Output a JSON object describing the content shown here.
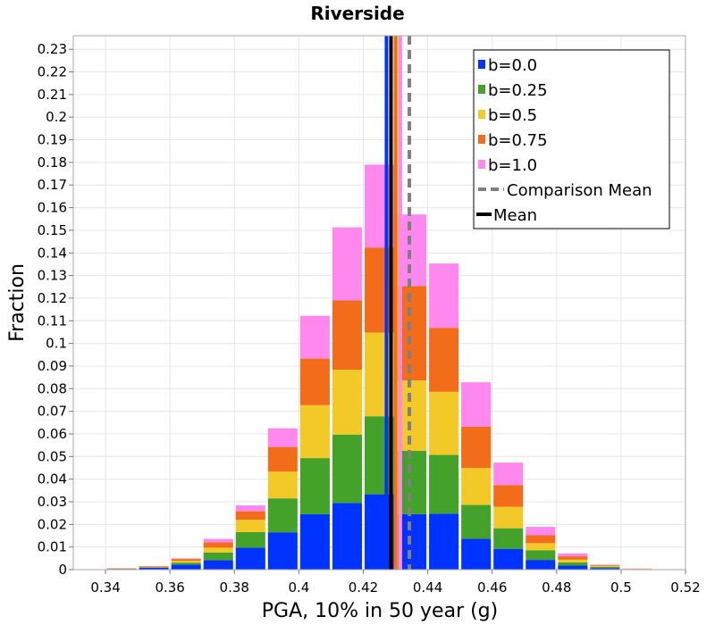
{
  "chart_data": {
    "type": "bar",
    "stacked": true,
    "title": "Riverside",
    "xlabel": "PGA, 10% in 50 year (g)",
    "ylabel": "Fraction",
    "xlim": [
      0.33,
      0.52
    ],
    "ylim": [
      0,
      0.236
    ],
    "xticks": [
      "0.34",
      "0.36",
      "0.38",
      "0.4",
      "0.42",
      "0.44",
      "0.46",
      "0.48",
      "0.5",
      "0.52"
    ],
    "xtick_values": [
      0.34,
      0.36,
      0.38,
      0.4,
      0.42,
      0.44,
      0.46,
      0.48,
      0.5,
      0.52
    ],
    "yticks": [
      "0",
      "0.01",
      "0.02",
      "0.03",
      "0.04",
      "0.05",
      "0.06",
      "0.07",
      "0.08",
      "0.09",
      "0.1",
      "0.11",
      "0.12",
      "0.13",
      "0.14",
      "0.15",
      "0.16",
      "0.17",
      "0.18",
      "0.19",
      "0.2",
      "0.21",
      "0.22",
      "0.23"
    ],
    "ytick_values": [
      0,
      0.01,
      0.02,
      0.03,
      0.04,
      0.05,
      0.06,
      0.07,
      0.08,
      0.09,
      0.1,
      0.11,
      0.12,
      0.13,
      0.14,
      0.15,
      0.16,
      0.17,
      0.18,
      0.19,
      0.2,
      0.21,
      0.22,
      0.23
    ],
    "grid": true,
    "legend_position": "top-right",
    "bin_width": 0.01,
    "bin_centers": [
      0.345,
      0.355,
      0.365,
      0.375,
      0.385,
      0.395,
      0.405,
      0.415,
      0.425,
      0.435,
      0.445,
      0.455,
      0.465,
      0.475,
      0.485,
      0.495,
      0.505
    ],
    "series": [
      {
        "name": "b=0.0",
        "color": "#0033ff",
        "values": [
          0.0003,
          0.0008,
          0.0022,
          0.0042,
          0.0097,
          0.0165,
          0.0245,
          0.0295,
          0.0333,
          0.0245,
          0.0247,
          0.0136,
          0.0092,
          0.0043,
          0.0018,
          0.0007,
          0.0001
        ]
      },
      {
        "name": "b=0.25",
        "color": "#44a12a",
        "values": [
          0.0001,
          0.0002,
          0.0009,
          0.0034,
          0.0069,
          0.015,
          0.0248,
          0.0302,
          0.0345,
          0.028,
          0.026,
          0.015,
          0.0091,
          0.0043,
          0.0014,
          0.0005,
          0.0001
        ]
      },
      {
        "name": "b=0.5",
        "color": "#f2c926",
        "values": [
          0.0001,
          0.0002,
          0.0008,
          0.0021,
          0.0054,
          0.0118,
          0.0234,
          0.0287,
          0.037,
          0.0311,
          0.0279,
          0.0163,
          0.0095,
          0.0031,
          0.0012,
          0.0005,
          0.0001
        ]
      },
      {
        "name": "b=0.75",
        "color": "#f26c1a",
        "values": [
          0.0001,
          0.0002,
          0.0008,
          0.0024,
          0.0038,
          0.0109,
          0.0206,
          0.0306,
          0.0376,
          0.0418,
          0.0283,
          0.0183,
          0.0096,
          0.0035,
          0.0015,
          0.0003,
          0.0001
        ]
      },
      {
        "name": "b=1.0",
        "color": "#ff88ee",
        "values": [
          0.0001,
          0.0002,
          0.0003,
          0.0015,
          0.0026,
          0.0083,
          0.0189,
          0.0323,
          0.0366,
          0.0316,
          0.0284,
          0.0196,
          0.0099,
          0.0037,
          0.0013,
          0.0002,
          0.0001
        ]
      }
    ],
    "vertical_lines": [
      {
        "name": "b=0.0",
        "x": 0.4272,
        "color": "#0033ff",
        "style": "solid"
      },
      {
        "name": "b=0.25",
        "x": 0.4286,
        "color": "#44a12a",
        "style": "solid"
      },
      {
        "name": "b=0.5",
        "x": 0.4303,
        "color": "#f2c926",
        "style": "solid"
      },
      {
        "name": "b=0.75",
        "x": 0.43,
        "color": "#f26c1a",
        "style": "solid"
      },
      {
        "name": "b=1.0",
        "x": 0.4315,
        "color": "#ff88ee",
        "style": "solid"
      },
      {
        "name": "Comparison Mean",
        "x": 0.4343,
        "color": "#808080",
        "style": "dashed"
      },
      {
        "name": "Mean",
        "x": 0.4286,
        "color": "#000000",
        "style": "solid"
      }
    ],
    "legend": [
      {
        "label": "b=0.0",
        "kind": "box",
        "color": "#0033ff"
      },
      {
        "label": "b=0.25",
        "kind": "box",
        "color": "#44a12a"
      },
      {
        "label": "b=0.5",
        "kind": "box",
        "color": "#f2c926"
      },
      {
        "label": "b=0.75",
        "kind": "box",
        "color": "#f26c1a"
      },
      {
        "label": "b=1.0",
        "kind": "box",
        "color": "#ff88ee"
      },
      {
        "label": "Comparison Mean",
        "kind": "dashed",
        "color": "#808080"
      },
      {
        "label": "Mean",
        "kind": "line",
        "color": "#000000"
      }
    ]
  }
}
